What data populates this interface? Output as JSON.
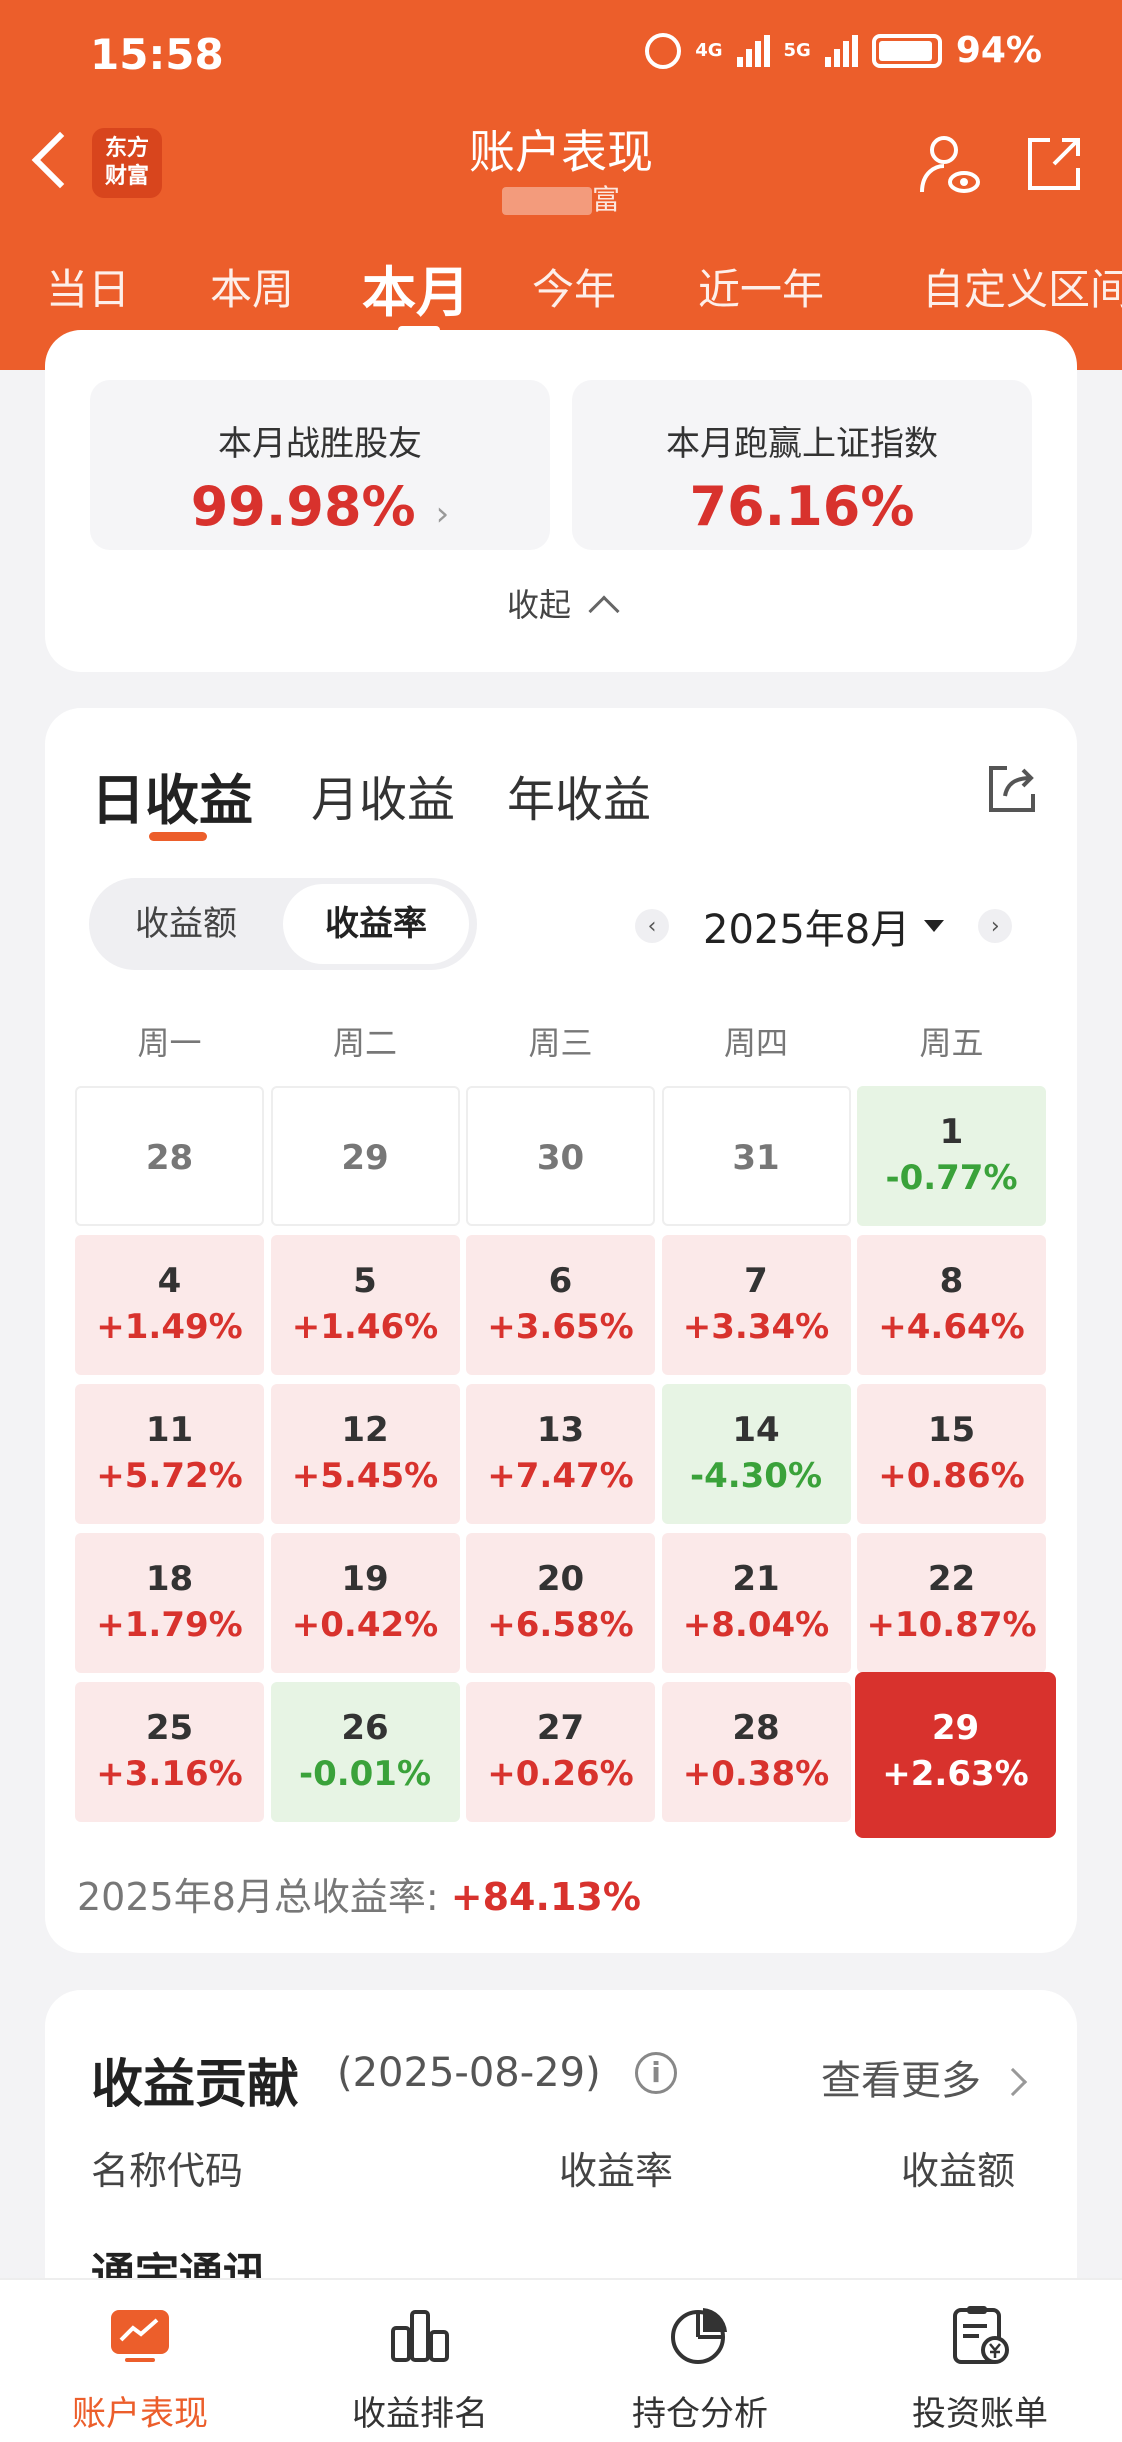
{
  "status": {
    "time": "15:58",
    "net1": "4G",
    "net2": "5G",
    "battery": "94%"
  },
  "header": {
    "logo_line1": "东方",
    "logo_line2": "财富",
    "title": "账户表现",
    "subtitle_visible": "富",
    "accent": "#ec5e2b"
  },
  "period_tabs": [
    "当日",
    "本周",
    "本月",
    "今年",
    "近一年",
    "自定义区间"
  ],
  "summary": {
    "beat_label": "本月战胜股友",
    "beat_value": "99.98%",
    "index_label": "本月跑赢上证指数",
    "index_value": "76.16%",
    "collapse": "收起"
  },
  "profit": {
    "tabs": [
      "日收益",
      "月收益",
      "年收益"
    ],
    "seg": [
      "收益额",
      "收益率"
    ],
    "month": "2025年8月",
    "weekdays": [
      "周一",
      "周二",
      "周三",
      "周四",
      "周五"
    ],
    "calendar": [
      {
        "d": "28",
        "p": "",
        "t": "out"
      },
      {
        "d": "29",
        "p": "",
        "t": "out"
      },
      {
        "d": "30",
        "p": "",
        "t": "out"
      },
      {
        "d": "31",
        "p": "",
        "t": "out"
      },
      {
        "d": "1",
        "p": "-0.77%",
        "t": "down"
      },
      {
        "d": "4",
        "p": "+1.49%",
        "t": "up"
      },
      {
        "d": "5",
        "p": "+1.46%",
        "t": "up"
      },
      {
        "d": "6",
        "p": "+3.65%",
        "t": "up"
      },
      {
        "d": "7",
        "p": "+3.34%",
        "t": "up"
      },
      {
        "d": "8",
        "p": "+4.64%",
        "t": "up"
      },
      {
        "d": "11",
        "p": "+5.72%",
        "t": "up"
      },
      {
        "d": "12",
        "p": "+5.45%",
        "t": "up"
      },
      {
        "d": "13",
        "p": "+7.47%",
        "t": "up"
      },
      {
        "d": "14",
        "p": "-4.30%",
        "t": "down"
      },
      {
        "d": "15",
        "p": "+0.86%",
        "t": "up"
      },
      {
        "d": "18",
        "p": "+1.79%",
        "t": "up"
      },
      {
        "d": "19",
        "p": "+0.42%",
        "t": "up"
      },
      {
        "d": "20",
        "p": "+6.58%",
        "t": "up"
      },
      {
        "d": "21",
        "p": "+8.04%",
        "t": "up"
      },
      {
        "d": "22",
        "p": "+10.87%",
        "t": "up"
      },
      {
        "d": "25",
        "p": "+3.16%",
        "t": "up"
      },
      {
        "d": "26",
        "p": "-0.01%",
        "t": "down"
      },
      {
        "d": "27",
        "p": "+0.26%",
        "t": "up"
      },
      {
        "d": "28",
        "p": "+0.38%",
        "t": "up"
      },
      {
        "d": "29",
        "p": "+2.63%",
        "t": "sel"
      }
    ],
    "total_label": "2025年8月总收益率: ",
    "total_value": "+84.13%"
  },
  "contribution": {
    "title": "收益贡献",
    "date": "(2025-08-29)",
    "more": "查看更多",
    "col_name": "名称代码",
    "col_rate": "收益率",
    "col_amount": "收益额",
    "first_row_name": "通宇通讯"
  },
  "bottom_nav": [
    "账户表现",
    "收益排名",
    "持仓分析",
    "投资账单"
  ]
}
